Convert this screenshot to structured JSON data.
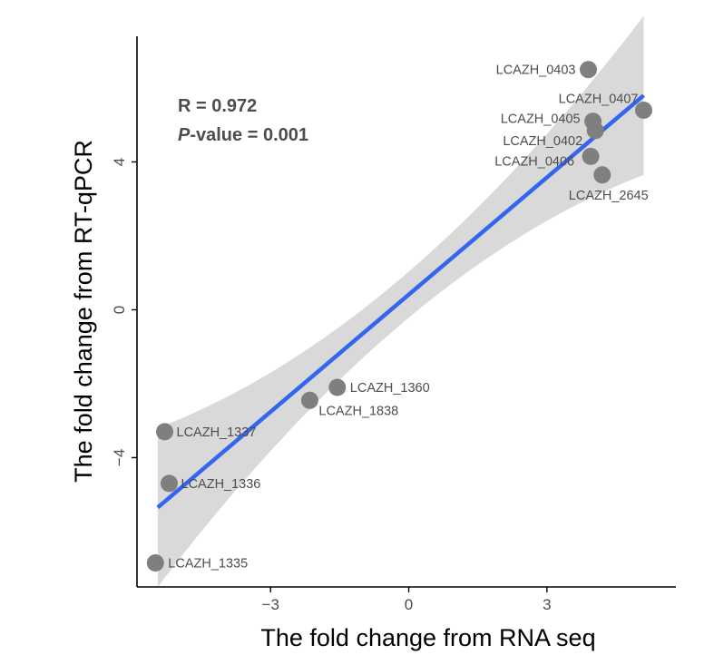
{
  "chart_data": {
    "type": "scatter",
    "xlabel": "The fold change from RNA seq",
    "ylabel": "The fold change from RT-qPCR",
    "xlim": [
      -5.9,
      5.8
    ],
    "ylim": [
      -7.5,
      7.4
    ],
    "x_ticks": [
      -3,
      0,
      3
    ],
    "x_tick_labels": [
      "−3",
      "0",
      "3"
    ],
    "y_ticks": [
      -4,
      0,
      4
    ],
    "y_tick_labels": [
      "−4",
      "0",
      "4"
    ],
    "grid": false,
    "annotation": {
      "r_text": "R = 0.972",
      "p_italic": "P",
      "p_rest": "-value = 0.001"
    },
    "points": [
      {
        "label": "LCAZH_0403",
        "x": 3.9,
        "y": 6.5
      },
      {
        "label": "LCAZH_0407",
        "x": 5.1,
        "y": 5.4
      },
      {
        "label": "LCAZH_0405",
        "x": 4.0,
        "y": 5.1
      },
      {
        "label": "LCAZH_0402",
        "x": 4.05,
        "y": 4.85
      },
      {
        "label": "LCAZH_0406",
        "x": 3.95,
        "y": 4.15
      },
      {
        "label": "LCAZH_2645",
        "x": 4.2,
        "y": 3.65
      },
      {
        "label": "LCAZH_1360",
        "x": -1.55,
        "y": -2.1
      },
      {
        "label": "LCAZH_1838",
        "x": -2.15,
        "y": -2.45
      },
      {
        "label": "LCAZH_1337",
        "x": -5.3,
        "y": -3.3
      },
      {
        "label": "LCAZH_1336",
        "x": -5.2,
        "y": -4.7
      },
      {
        "label": "LCAZH_1335",
        "x": -5.5,
        "y": -6.85
      }
    ],
    "fit": {
      "x": [
        -5.45,
        5.1
      ],
      "y": [
        -5.35,
        5.8
      ]
    },
    "colors": {
      "point": "#7f7f7f",
      "fit_line": "#3366ee",
      "ci_band": "#d9d9d9",
      "axis": "#000000",
      "text": "#4d4d4d"
    }
  }
}
